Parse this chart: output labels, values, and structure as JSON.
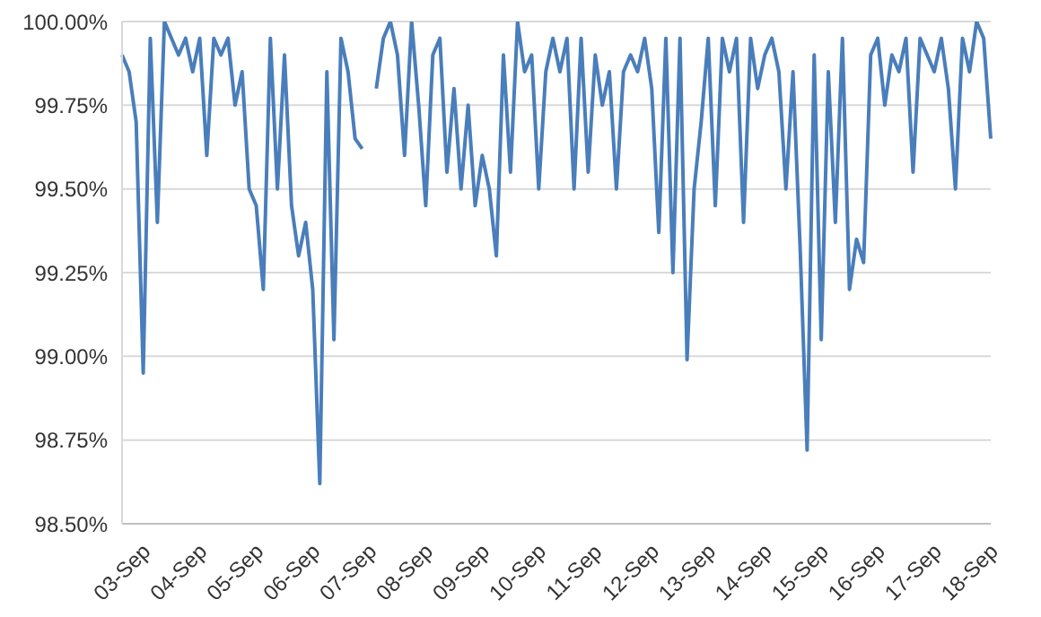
{
  "chart_data": {
    "type": "line",
    "categories": [
      "03-Sep",
      null,
      null,
      null,
      null,
      null,
      null,
      null,
      "04-Sep",
      null,
      null,
      null,
      null,
      null,
      null,
      null,
      "05-Sep",
      null,
      null,
      null,
      null,
      null,
      null,
      null,
      "06-Sep",
      null,
      null,
      null,
      null,
      null,
      null,
      null,
      "07-Sep",
      null,
      null,
      null,
      null,
      null,
      null,
      null,
      "08-Sep",
      null,
      null,
      null,
      null,
      null,
      null,
      null,
      "09-Sep",
      null,
      null,
      null,
      null,
      null,
      null,
      null,
      "10-Sep",
      null,
      null,
      null,
      null,
      null,
      null,
      null,
      "11-Sep",
      null,
      null,
      null,
      null,
      null,
      null,
      null,
      "12-Sep",
      null,
      null,
      null,
      null,
      null,
      null,
      null,
      "13-Sep",
      null,
      null,
      null,
      null,
      null,
      null,
      null,
      "14-Sep",
      null,
      null,
      null,
      null,
      null,
      null,
      null,
      "15-Sep",
      null,
      null,
      null,
      null,
      null,
      null,
      null,
      "16-Sep",
      null,
      null,
      null,
      null,
      null,
      null,
      null,
      "17-Sep",
      null,
      null,
      null,
      null,
      null,
      null,
      null,
      "18-Sep",
      null,
      null,
      null
    ],
    "series": [
      {
        "color": "#4a7ebb",
        "values": [
          99.9,
          99.85,
          99.7,
          98.95,
          99.95,
          99.4,
          100,
          99.95,
          99.9,
          99.95,
          99.85,
          99.95,
          99.6,
          99.95,
          99.9,
          99.95,
          99.75,
          99.85,
          99.5,
          99.45,
          99.2,
          99.95,
          99.5,
          99.9,
          99.45,
          99.3,
          99.4,
          99.2,
          98.62,
          99.85,
          99.05,
          99.95,
          99.85,
          99.65,
          99.62,
          null,
          99.8,
          99.95,
          100,
          99.9,
          99.6,
          100,
          99.75,
          99.45,
          99.9,
          99.95,
          99.55,
          99.8,
          99.5,
          99.75,
          99.45,
          99.6,
          99.5,
          99.3,
          99.9,
          99.55,
          100,
          99.85,
          99.9,
          99.5,
          99.85,
          99.95,
          99.85,
          99.95,
          99.5,
          99.95,
          99.55,
          99.9,
          99.75,
          99.85,
          99.5,
          99.85,
          99.9,
          99.85,
          99.95,
          99.8,
          99.37,
          99.95,
          99.25,
          99.95,
          98.99,
          99.5,
          99.7,
          99.95,
          99.45,
          99.95,
          99.85,
          99.95,
          99.4,
          99.95,
          99.8,
          99.9,
          99.95,
          99.85,
          99.5,
          99.85,
          99.33,
          98.72,
          99.9,
          99.05,
          99.85,
          99.4,
          99.95,
          99.2,
          99.35,
          99.28,
          99.9,
          99.95,
          99.75,
          99.9,
          99.85,
          99.95,
          99.55,
          99.95,
          99.9,
          99.85,
          99.95,
          99.8,
          99.5,
          99.95,
          99.85,
          100,
          99.95,
          99.65
        ]
      }
    ],
    "ylim": [
      98.5,
      100
    ],
    "yticks": [
      {
        "value": 98.5,
        "label": "98.50%"
      },
      {
        "value": 98.75,
        "label": "98.75%"
      },
      {
        "value": 99,
        "label": "99.00%"
      },
      {
        "value": 99.25,
        "label": "99.25%"
      },
      {
        "value": 99.5,
        "label": "99.50%"
      },
      {
        "value": 99.75,
        "label": "99.75%"
      },
      {
        "value": 100,
        "label": "100.00%"
      }
    ],
    "grid": "y"
  }
}
